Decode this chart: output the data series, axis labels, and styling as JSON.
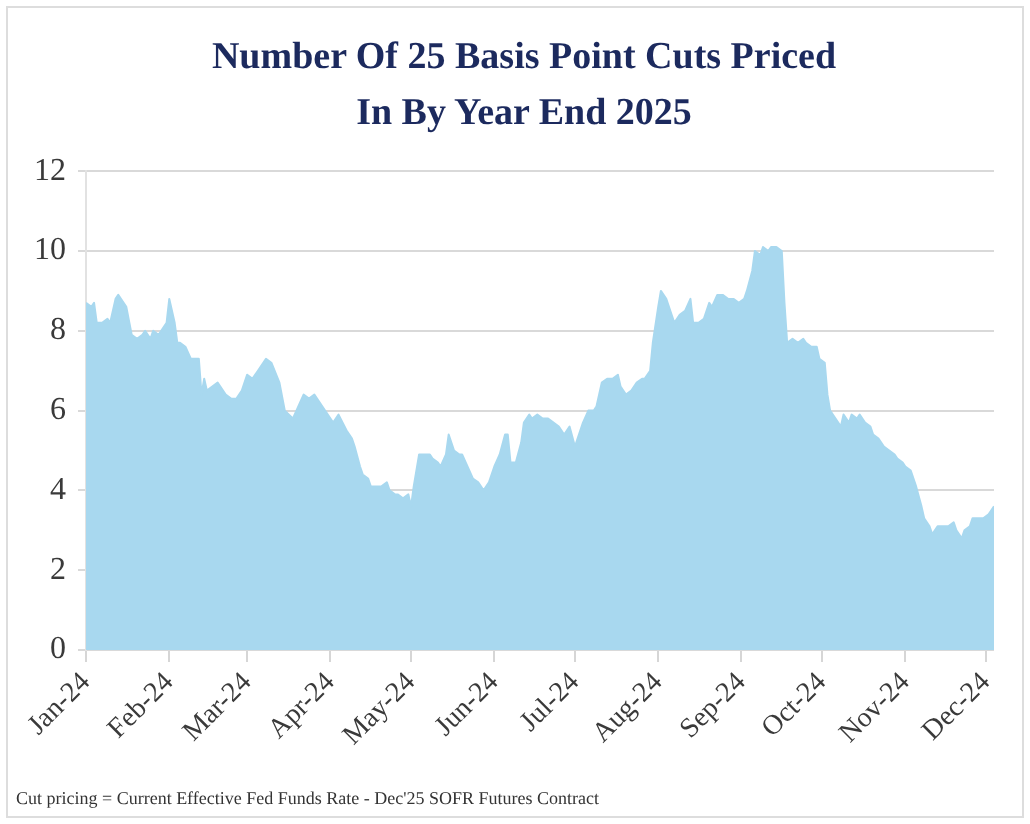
{
  "chart_data": {
    "type": "area",
    "title": "Number Of 25 Basis Point Cuts Priced In By Year End 2025",
    "annotations": [
      "Cut pricing = Current Effective Fed Funds Rate - Dec'25 SOFR Futures Contract"
    ],
    "x": [
      "2024-01-01",
      "2024-01-03",
      "2024-01-04",
      "2024-01-05",
      "2024-01-07",
      "2024-01-09",
      "2024-01-10",
      "2024-01-12",
      "2024-01-13",
      "2024-01-16",
      "2024-01-18",
      "2024-01-20",
      "2024-01-22",
      "2024-01-23",
      "2024-01-25",
      "2024-01-26",
      "2024-01-28",
      "2024-01-30",
      "2024-01-31",
      "2024-02-01",
      "2024-02-03",
      "2024-02-04",
      "2024-02-05",
      "2024-02-07",
      "2024-02-09",
      "2024-02-10",
      "2024-02-12",
      "2024-02-13",
      "2024-02-14",
      "2024-02-15",
      "2024-02-17",
      "2024-02-19",
      "2024-02-22",
      "2024-02-24",
      "2024-02-26",
      "2024-02-28",
      "2024-03-01",
      "2024-03-03",
      "2024-03-05",
      "2024-03-08",
      "2024-03-10",
      "2024-03-13",
      "2024-03-15",
      "2024-03-18",
      "2024-03-20",
      "2024-03-22",
      "2024-03-24",
      "2024-03-26",
      "2024-03-28",
      "2024-03-31",
      "2024-04-02",
      "2024-04-04",
      "2024-04-07",
      "2024-04-09",
      "2024-04-10",
      "2024-04-12",
      "2024-04-13",
      "2024-04-15",
      "2024-04-16",
      "2024-04-18",
      "2024-04-20",
      "2024-04-22",
      "2024-04-23",
      "2024-04-25",
      "2024-04-26",
      "2024-04-28",
      "2024-04-30",
      "2024-05-01",
      "2024-05-02",
      "2024-05-04",
      "2024-05-06",
      "2024-05-08",
      "2024-05-09",
      "2024-05-11",
      "2024-05-12",
      "2024-05-14",
      "2024-05-15",
      "2024-05-17",
      "2024-05-19",
      "2024-05-20",
      "2024-05-22",
      "2024-05-24",
      "2024-05-26",
      "2024-05-28",
      "2024-05-30",
      "2024-06-01",
      "2024-06-03",
      "2024-06-05",
      "2024-06-06",
      "2024-06-07",
      "2024-06-09",
      "2024-06-11",
      "2024-06-12",
      "2024-06-14",
      "2024-06-15",
      "2024-06-17",
      "2024-06-19",
      "2024-06-21",
      "2024-06-23",
      "2024-06-25",
      "2024-06-27",
      "2024-06-29",
      "2024-07-01",
      "2024-07-02",
      "2024-07-04",
      "2024-07-06",
      "2024-07-08",
      "2024-07-09",
      "2024-07-11",
      "2024-07-13",
      "2024-07-15",
      "2024-07-17",
      "2024-07-18",
      "2024-07-20",
      "2024-07-22",
      "2024-07-24",
      "2024-07-26",
      "2024-07-27",
      "2024-07-29",
      "2024-07-30",
      "2024-08-01",
      "2024-08-02",
      "2024-08-04",
      "2024-08-06",
      "2024-08-07",
      "2024-08-09",
      "2024-08-11",
      "2024-08-13",
      "2024-08-14",
      "2024-08-16",
      "2024-08-18",
      "2024-08-20",
      "2024-08-21",
      "2024-08-23",
      "2024-08-25",
      "2024-08-27",
      "2024-08-29",
      "2024-08-31",
      "2024-09-02",
      "2024-09-03",
      "2024-09-05",
      "2024-09-06",
      "2024-09-08",
      "2024-09-09",
      "2024-09-11",
      "2024-09-12",
      "2024-09-14",
      "2024-09-16",
      "2024-09-17",
      "2024-09-18",
      "2024-09-20",
      "2024-09-22",
      "2024-09-24",
      "2024-09-25",
      "2024-09-27",
      "2024-09-29",
      "2024-09-30",
      "2024-10-02",
      "2024-10-03",
      "2024-10-04",
      "2024-10-06",
      "2024-10-08",
      "2024-10-09",
      "2024-10-11",
      "2024-10-12",
      "2024-10-14",
      "2024-10-15",
      "2024-10-17",
      "2024-10-19",
      "2024-10-20",
      "2024-10-22",
      "2024-10-24",
      "2024-10-26",
      "2024-10-28",
      "2024-10-29",
      "2024-10-31",
      "2024-11-01",
      "2024-11-03",
      "2024-11-05",
      "2024-11-07",
      "2024-11-08",
      "2024-11-10",
      "2024-11-11",
      "2024-11-13",
      "2024-11-15",
      "2024-11-17",
      "2024-11-19",
      "2024-11-20",
      "2024-11-22",
      "2024-11-23",
      "2024-11-25",
      "2024-11-26",
      "2024-11-28",
      "2024-11-30",
      "2024-12-02",
      "2024-12-04"
    ],
    "values": [
      8.7,
      8.6,
      8.7,
      8.2,
      8.2,
      8.3,
      8.2,
      8.8,
      8.9,
      8.6,
      7.9,
      7.8,
      7.9,
      8.0,
      7.8,
      8.0,
      7.9,
      8.1,
      8.2,
      8.8,
      8.2,
      7.7,
      7.7,
      7.6,
      7.3,
      7.3,
      7.3,
      6.4,
      6.8,
      6.5,
      6.6,
      6.7,
      6.4,
      6.3,
      6.3,
      6.5,
      6.9,
      6.8,
      7.0,
      7.3,
      7.2,
      6.7,
      6.0,
      5.8,
      6.1,
      6.4,
      6.3,
      6.4,
      6.2,
      5.9,
      5.7,
      5.9,
      5.5,
      5.3,
      5.1,
      4.6,
      4.4,
      4.3,
      4.1,
      4.1,
      4.1,
      4.2,
      4.0,
      3.9,
      3.9,
      3.8,
      3.9,
      3.6,
      4.1,
      4.9,
      4.9,
      4.9,
      4.8,
      4.7,
      4.6,
      4.9,
      5.4,
      5.0,
      4.9,
      4.9,
      4.6,
      4.3,
      4.2,
      4.0,
      4.2,
      4.6,
      4.9,
      5.4,
      5.4,
      4.7,
      4.7,
      5.2,
      5.7,
      5.9,
      5.8,
      5.9,
      5.8,
      5.8,
      5.7,
      5.6,
      5.4,
      5.6,
      5.1,
      5.3,
      5.7,
      6.0,
      6.0,
      6.1,
      6.7,
      6.8,
      6.8,
      6.9,
      6.6,
      6.4,
      6.5,
      6.7,
      6.8,
      6.8,
      7.0,
      7.7,
      8.6,
      9.0,
      8.8,
      8.4,
      8.2,
      8.4,
      8.5,
      8.8,
      8.2,
      8.2,
      8.3,
      8.7,
      8.6,
      8.9,
      8.9,
      8.8,
      8.8,
      8.7,
      8.8,
      9.0,
      9.5,
      10.0,
      9.9,
      10.1,
      10.0,
      10.1,
      10.1,
      10.0,
      8.7,
      7.7,
      7.8,
      7.7,
      7.8,
      7.7,
      7.6,
      7.6,
      7.3,
      7.2,
      6.4,
      6.0,
      5.8,
      5.6,
      5.9,
      5.7,
      5.9,
      5.8,
      5.9,
      5.7,
      5.6,
      5.4,
      5.3,
      5.1,
      5.0,
      4.9,
      4.8,
      4.7,
      4.6,
      4.5,
      4.1,
      3.6,
      3.3,
      3.1,
      2.9,
      3.1,
      3.1,
      3.1,
      3.2,
      3.0,
      2.8,
      3.0,
      3.1,
      3.3,
      3.3,
      3.3,
      3.4,
      3.6
    ],
    "color": "#a8d8ef",
    "xlim": [
      "2024-01-01",
      "2024-12-04"
    ],
    "xticks": [
      {
        "value": "2024-01-01",
        "label": "Jan-24"
      },
      {
        "value": "2024-02-01",
        "label": "Feb-24"
      },
      {
        "value": "2024-03-01",
        "label": "Mar-24"
      },
      {
        "value": "2024-04-01",
        "label": "Apr-24"
      },
      {
        "value": "2024-05-01",
        "label": "May-24"
      },
      {
        "value": "2024-06-01",
        "label": "Jun-24"
      },
      {
        "value": "2024-07-01",
        "label": "Jul-24"
      },
      {
        "value": "2024-08-01",
        "label": "Aug-24"
      },
      {
        "value": "2024-09-01",
        "label": "Sep-24"
      },
      {
        "value": "2024-10-01",
        "label": "Oct-24"
      },
      {
        "value": "2024-11-01",
        "label": "Nov-24"
      },
      {
        "value": "2024-12-01",
        "label": "Dec-24"
      }
    ],
    "ylim": [
      0,
      12
    ],
    "yticks": [
      0,
      2,
      4,
      6,
      8,
      10,
      12
    ],
    "grid": "y"
  }
}
